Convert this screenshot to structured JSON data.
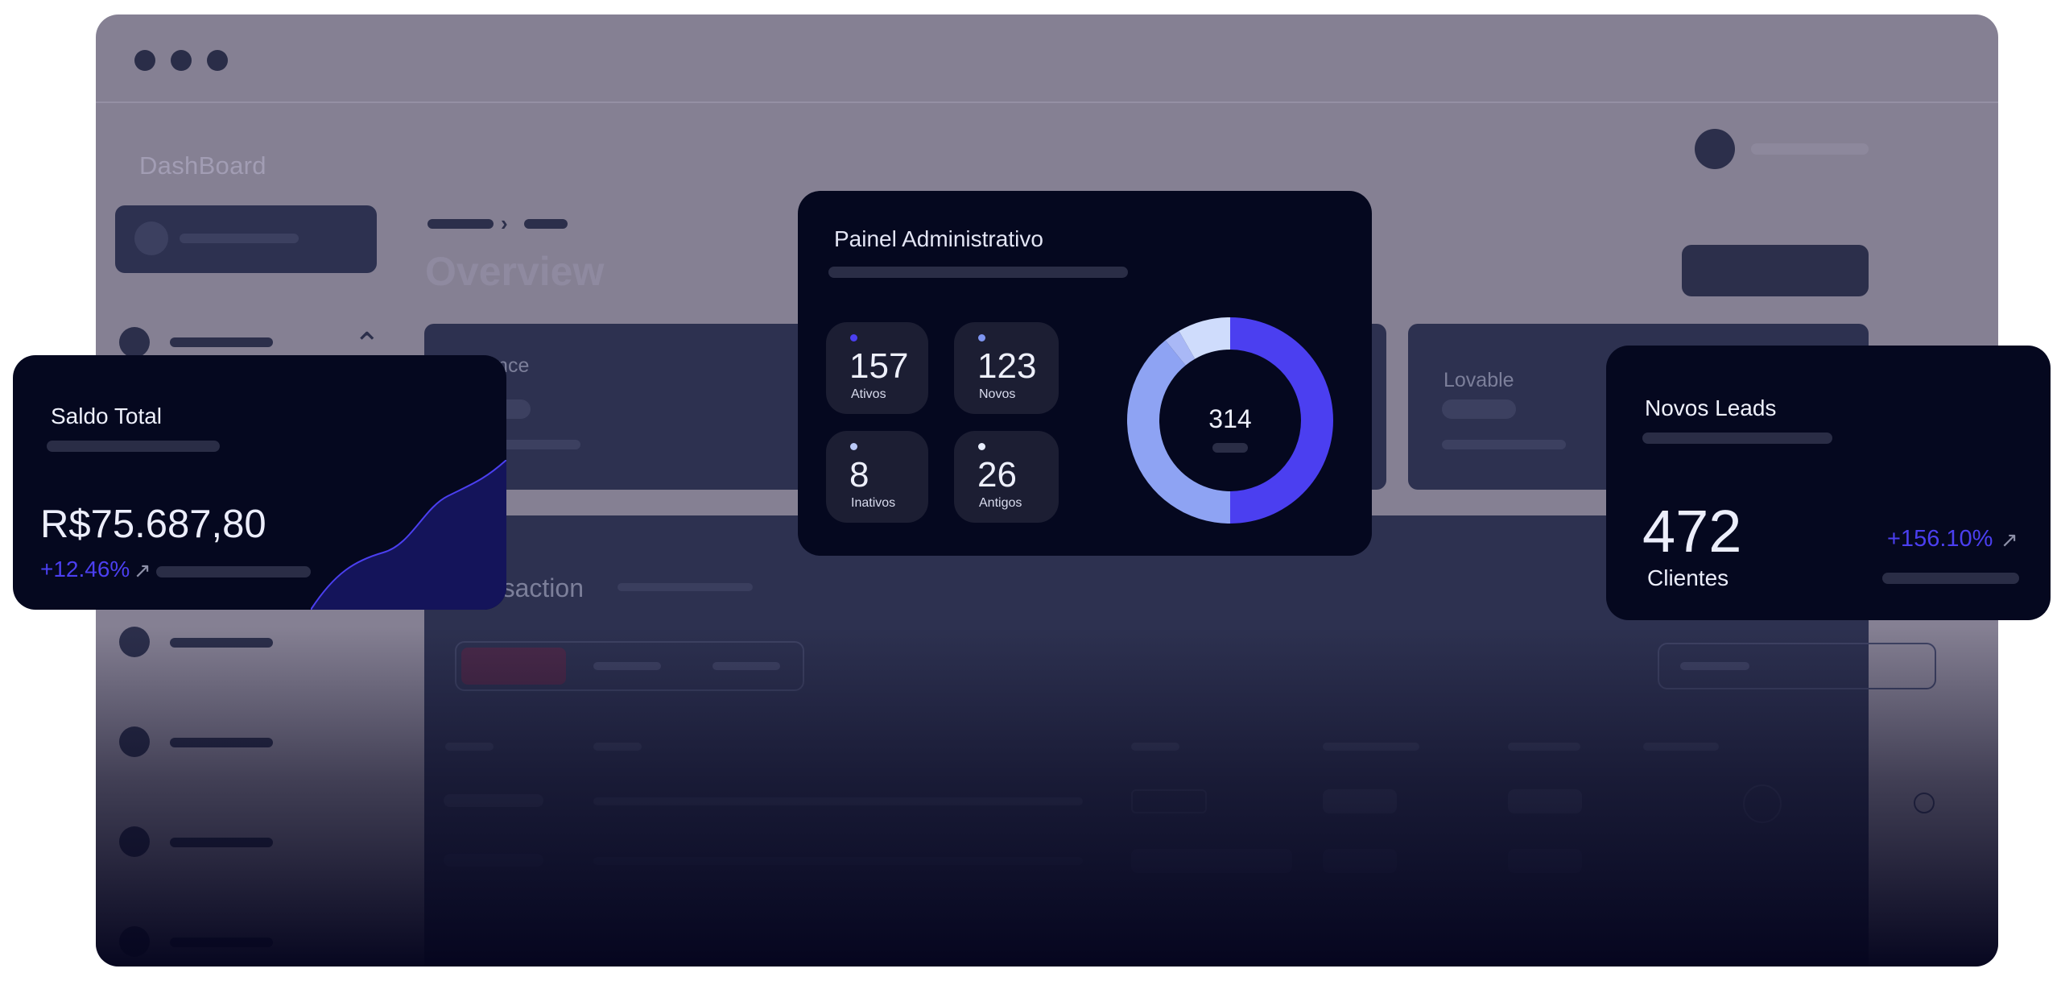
{
  "background_dashboard": {
    "brand": "DashBoard",
    "page_title": "Overview",
    "card_label_1": "Balance",
    "card_label_2": "Lovable",
    "section_title": "Transaction"
  },
  "saldo_card": {
    "title": "Saldo Total",
    "amount": "R$75.687,80",
    "change": "+12.46%",
    "trend_icon": "arrow-up-right-icon"
  },
  "admin_card": {
    "title": "Painel Administrativo",
    "stats": [
      {
        "value": "157",
        "label": "Ativos",
        "color": "#4b3ff0"
      },
      {
        "value": "123",
        "label": "Novos",
        "color": "#7e95f0"
      },
      {
        "value": "8",
        "label": "Inativos",
        "color": "#b9c8f7"
      },
      {
        "value": "26",
        "label": "Antigos",
        "color": "#e8eefd"
      }
    ],
    "donut_total": "314"
  },
  "leads_card": {
    "title": "Novos Leads",
    "value": "472",
    "unit": "Clientes",
    "change": "+156.10%",
    "trend_icon": "arrow-up-right-icon"
  },
  "chart_data": [
    {
      "type": "pie",
      "categories": [
        "Ativos",
        "Novos",
        "Inativos",
        "Antigos"
      ],
      "values": [
        157,
        123,
        8,
        26
      ],
      "colors": [
        "#4b3ff0",
        "#8ea3f3",
        "#a9b8f6",
        "#cfdcfc"
      ],
      "title": "",
      "center_label": "314"
    }
  ],
  "colors": {
    "accent": "#4b3ff0",
    "card_bg": "#05081f",
    "window_bg": "#858093"
  }
}
